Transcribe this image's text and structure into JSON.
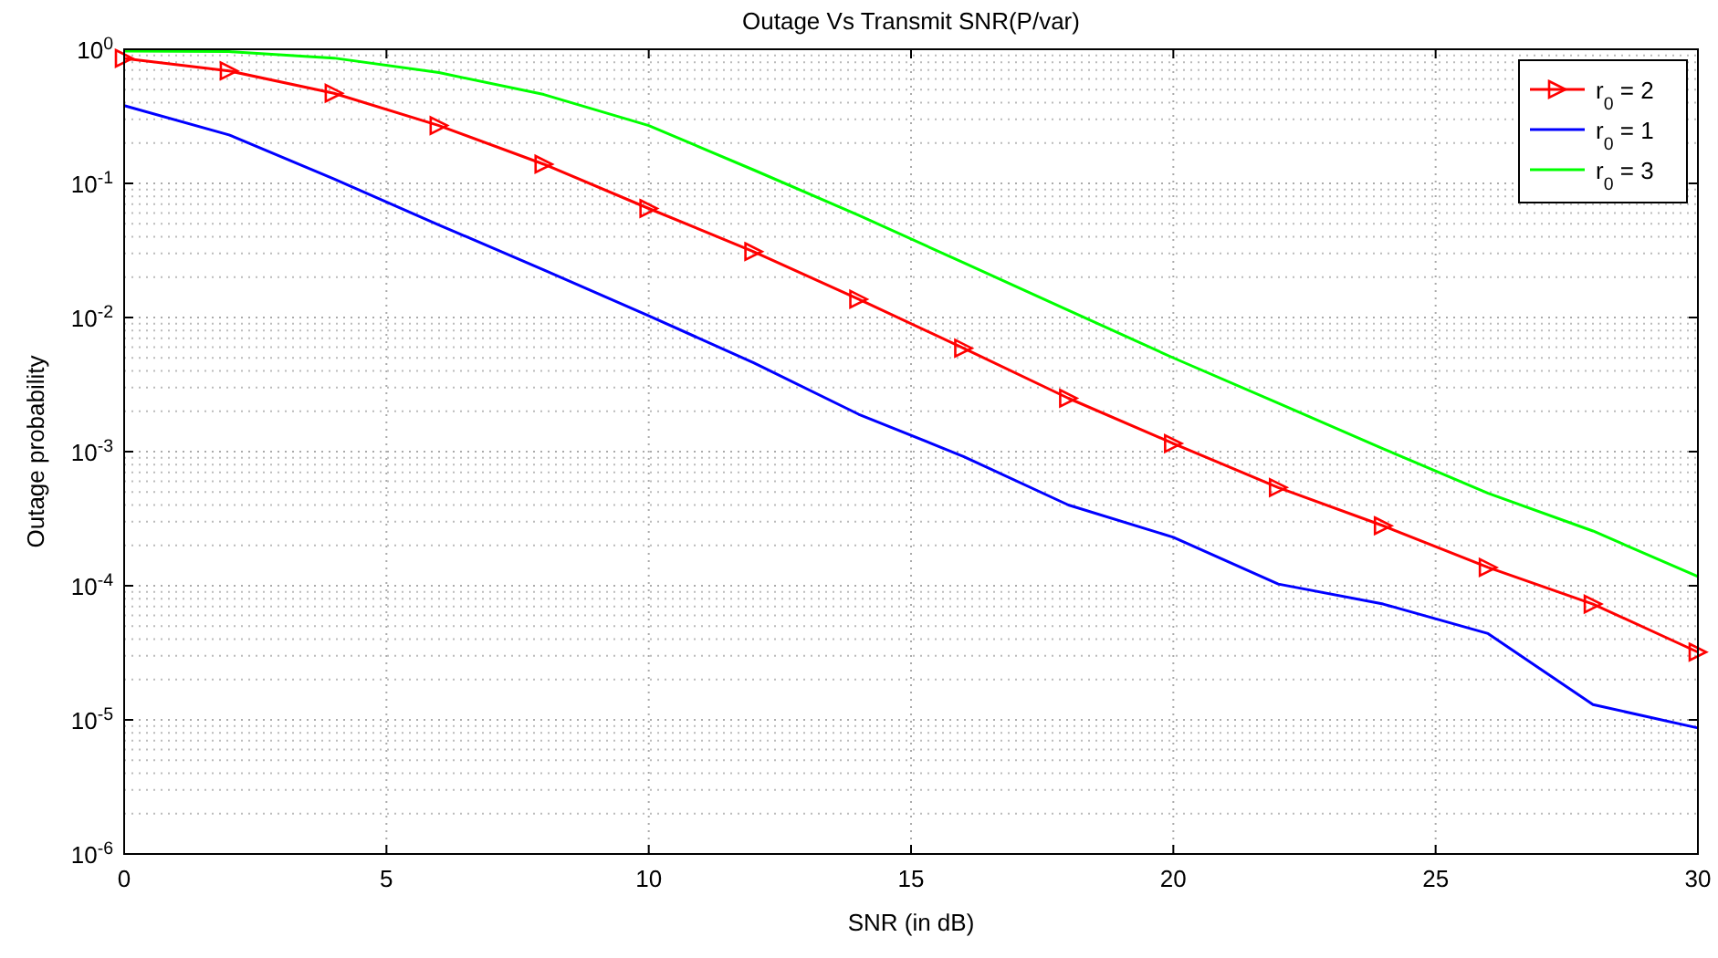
{
  "chart_data": {
    "type": "line",
    "title": "Outage Vs Transmit SNR(P/var)",
    "xlabel": "SNR (in dB)",
    "ylabel": "Outage probability",
    "log": "y",
    "grid": true,
    "legend": "top right",
    "line_style": "solid",
    "x": [
      0,
      2,
      4,
      6,
      8,
      10,
      12,
      14,
      16,
      18,
      20,
      22,
      24,
      26,
      28,
      30
    ],
    "xlim": [
      0,
      30
    ],
    "xticks": [
      0,
      5,
      10,
      15,
      20,
      25,
      30
    ],
    "ylim": [
      1e-06,
      1
    ],
    "yticks": [
      {
        "value": 1e-06,
        "label": "10$^{-6}$"
      },
      {
        "value": 1e-05,
        "label": "10$^{-5}$"
      },
      {
        "value": 0.0001,
        "label": "10$^{-4}$"
      },
      {
        "value": 0.001,
        "label": "10$^{-3}$"
      },
      {
        "value": 0.01,
        "label": "10$^{-2}$"
      },
      {
        "value": 0.1,
        "label": "10$^{-1}$"
      },
      {
        "value": 1,
        "label": "10$^{0}$"
      }
    ],
    "series": [
      {
        "name": "r$_{0}$ = 2",
        "color": "#ff0000",
        "marker": "triangle",
        "values": [
          0.855,
          0.69,
          0.47,
          0.27,
          0.139,
          0.065,
          0.031,
          0.0137,
          0.0059,
          0.0025,
          0.00115,
          0.00054,
          0.00028,
          0.000137,
          7.3e-05,
          3.2e-05
        ]
      },
      {
        "name": "r$_{0}$ = 1",
        "color": "#0000ff",
        "marker": "none",
        "values": [
          0.38,
          0.23,
          0.108,
          0.049,
          0.0226,
          0.0103,
          0.0046,
          0.0019,
          0.00092,
          0.0004,
          0.00023,
          0.000103,
          7.3e-05,
          4.4e-05,
          1.3e-05,
          8.7e-06
        ]
      },
      {
        "name": "r$_{0}$ = 3",
        "color": "#00ff00",
        "marker": "none",
        "values": [
          0.97,
          0.96,
          0.86,
          0.67,
          0.46,
          0.27,
          0.126,
          0.058,
          0.0256,
          0.0113,
          0.005,
          0.0023,
          0.00105,
          0.00049,
          0.000256,
          0.000117
        ]
      }
    ]
  }
}
